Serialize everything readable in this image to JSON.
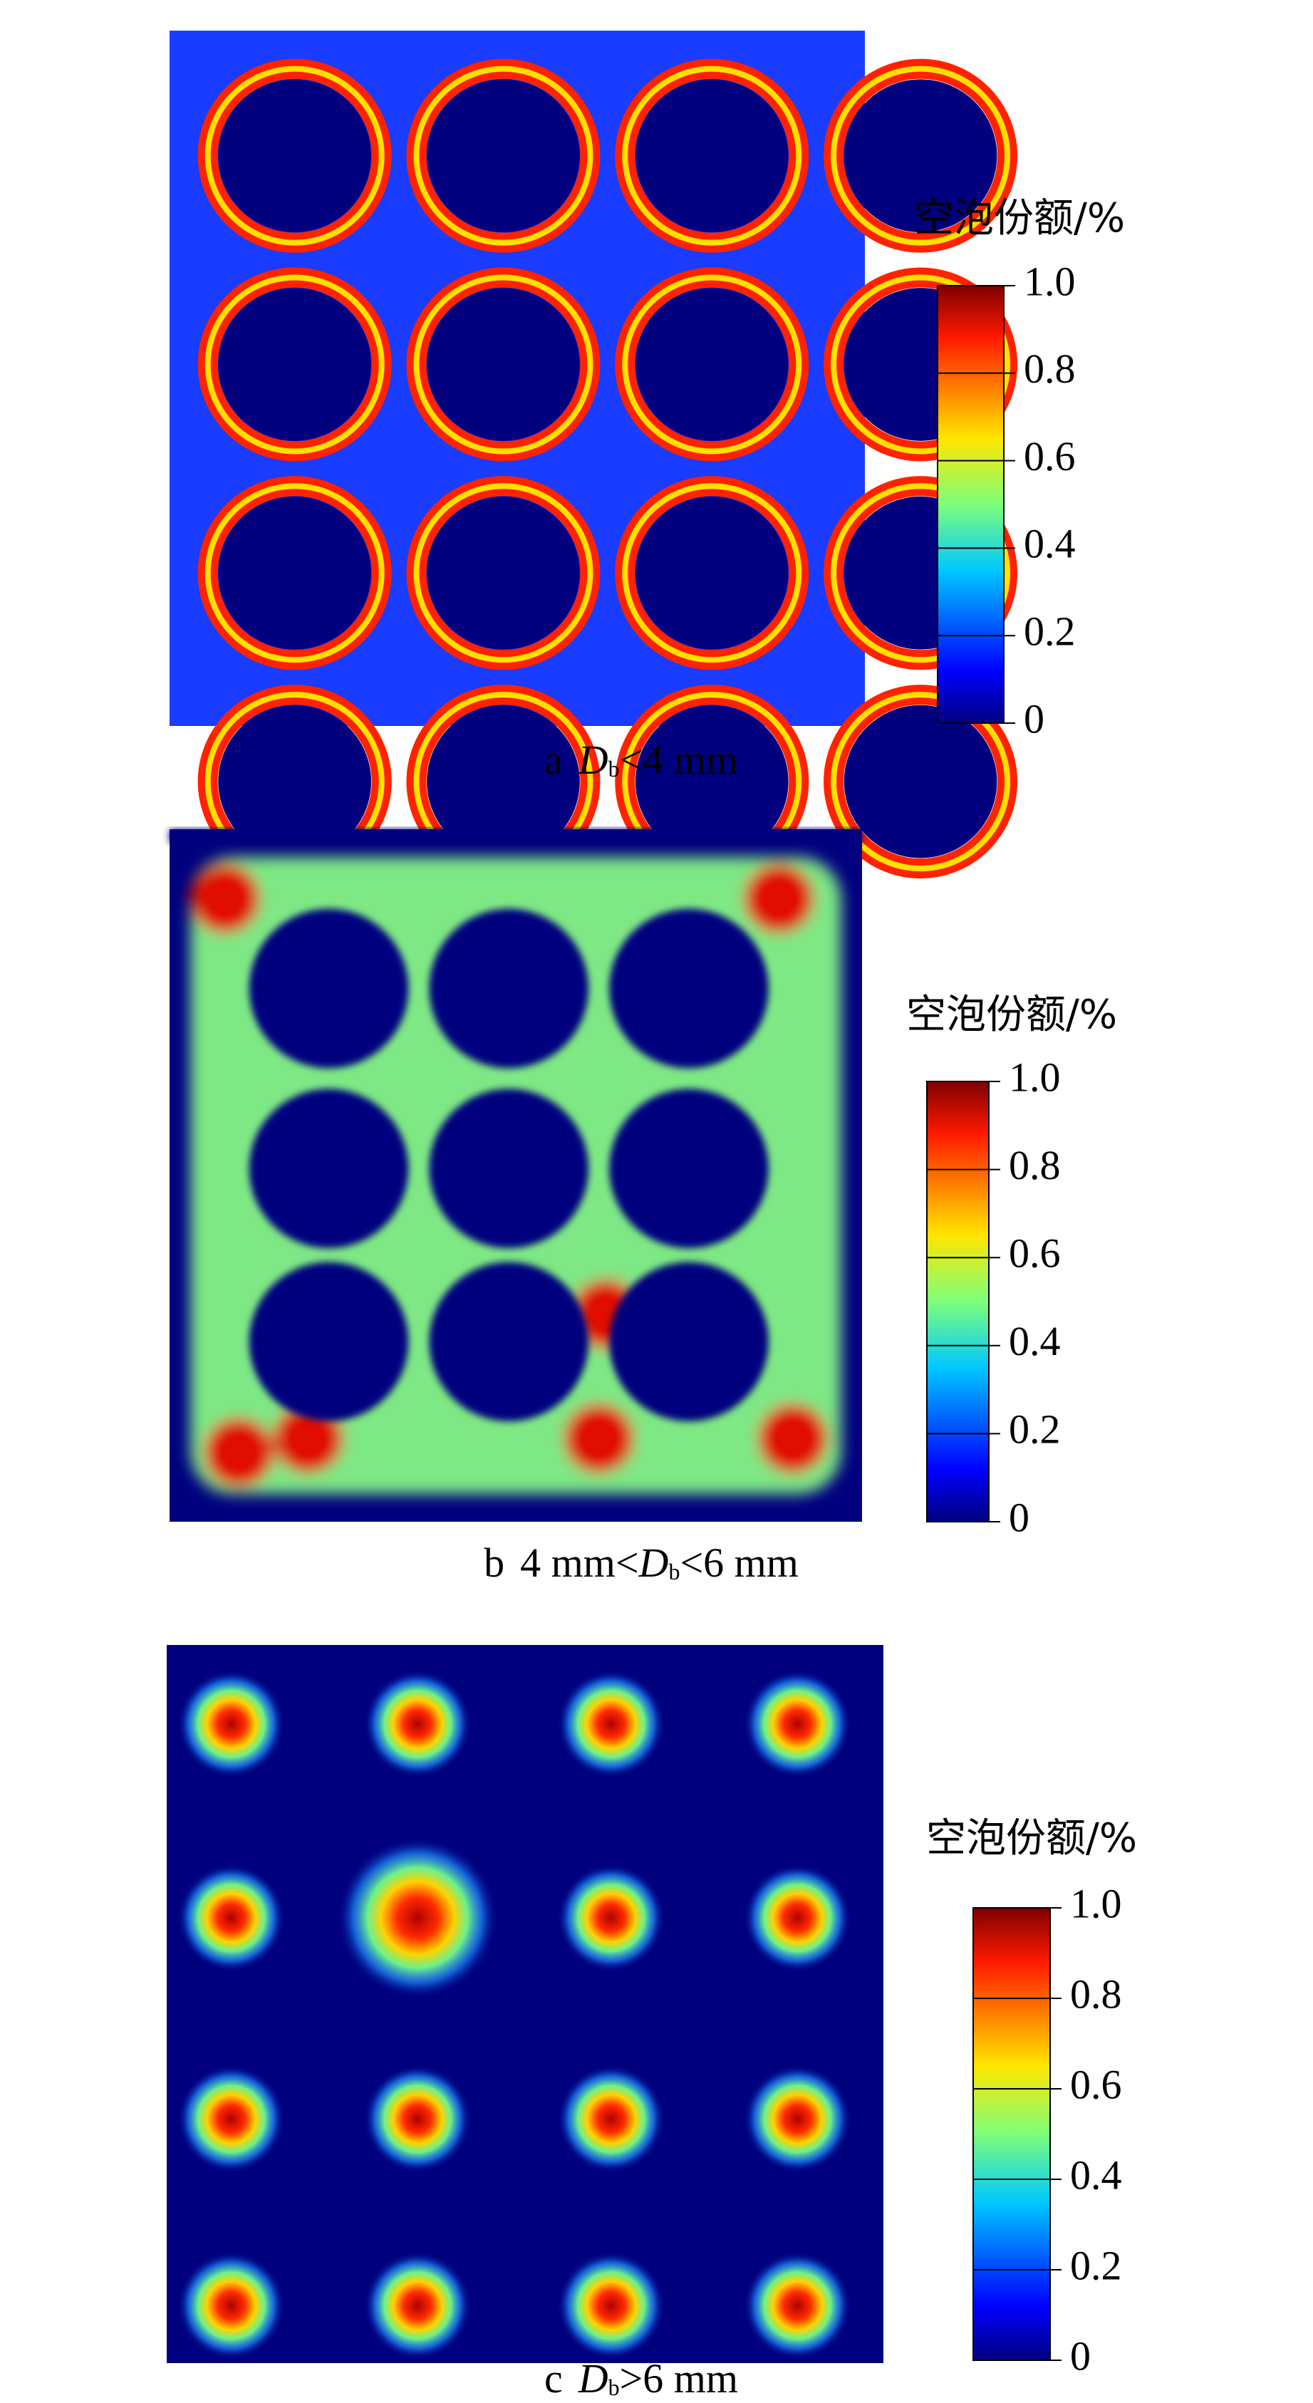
{
  "chart_data": [
    {
      "type": "heatmap",
      "pattern": "network",
      "caption": [
        {
          "text": "a"
        },
        {
          "text": "D",
          "style": "italic"
        },
        {
          "text": "b",
          "style": "sub"
        },
        {
          "text": "<4 mm"
        }
      ],
      "colorbar_title": "空泡份额/%",
      "colormap": "jet",
      "clim": [
        0,
        1
      ],
      "cticks": [
        0,
        0.2,
        0.4,
        0.6,
        0.8,
        {
          "value": 1,
          "label": "1.0"
        }
      ]
    },
    {
      "type": "heatmap",
      "pattern": "grid",
      "caption": [
        {
          "text": "b"
        },
        {
          "text": "4 mm<"
        },
        {
          "text": "D",
          "style": "italic"
        },
        {
          "text": "b",
          "style": "sub"
        },
        {
          "text": "<6 mm"
        }
      ],
      "colorbar_title": "空泡份额/%",
      "colormap": "jet",
      "clim": [
        0,
        1
      ],
      "cticks": [
        0,
        0.2,
        0.4,
        0.6,
        0.8,
        {
          "value": 1,
          "label": "1.0"
        }
      ]
    },
    {
      "type": "heatmap",
      "pattern": "spots",
      "caption": [
        {
          "text": "c"
        },
        {
          "text": "D",
          "style": "italic"
        },
        {
          "text": "b",
          "style": "sub"
        },
        {
          "text": ">6 mm"
        }
      ],
      "colorbar_title": "空泡份额/%",
      "colormap": "jet",
      "clim": [
        0,
        1
      ],
      "cticks": [
        0,
        0.2,
        0.4,
        0.6,
        0.8,
        {
          "value": 1,
          "label": "1.0"
        }
      ]
    }
  ]
}
